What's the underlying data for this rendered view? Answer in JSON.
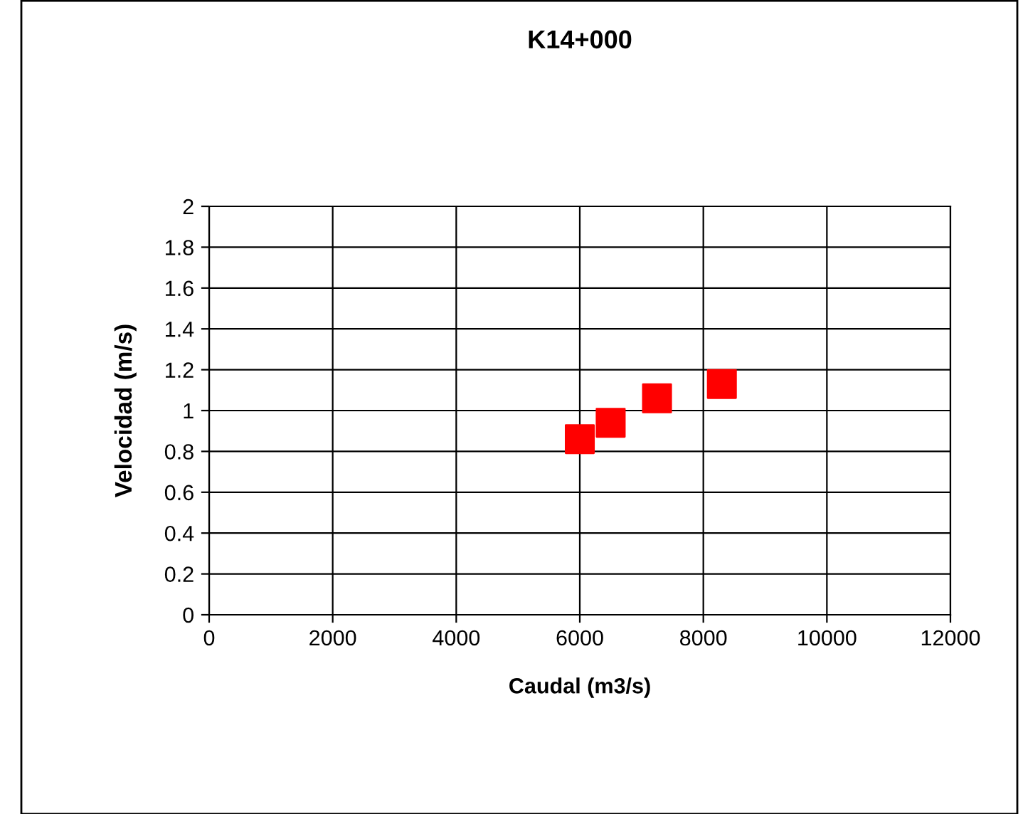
{
  "chart_data": {
    "type": "scatter",
    "title": "K14+000",
    "xlabel": "Caudal (m3/s)",
    "ylabel": "Velocidad (m/s)",
    "x": [
      6000,
      6500,
      7250,
      8300
    ],
    "series": [
      {
        "color": "#ff0000",
        "values": [
          0.86,
          0.94,
          1.06,
          1.13
        ]
      }
    ],
    "xlim": [
      0,
      12000
    ],
    "xticks": [
      0,
      2000,
      4000,
      6000,
      8000,
      10000,
      12000
    ],
    "ylim": [
      0,
      2
    ],
    "yticks": [
      0,
      0.2,
      0.4,
      0.6,
      0.8,
      1,
      1.2,
      1.4,
      1.6,
      1.8,
      2
    ],
    "grid": true,
    "marker": "square",
    "legend": false
  }
}
